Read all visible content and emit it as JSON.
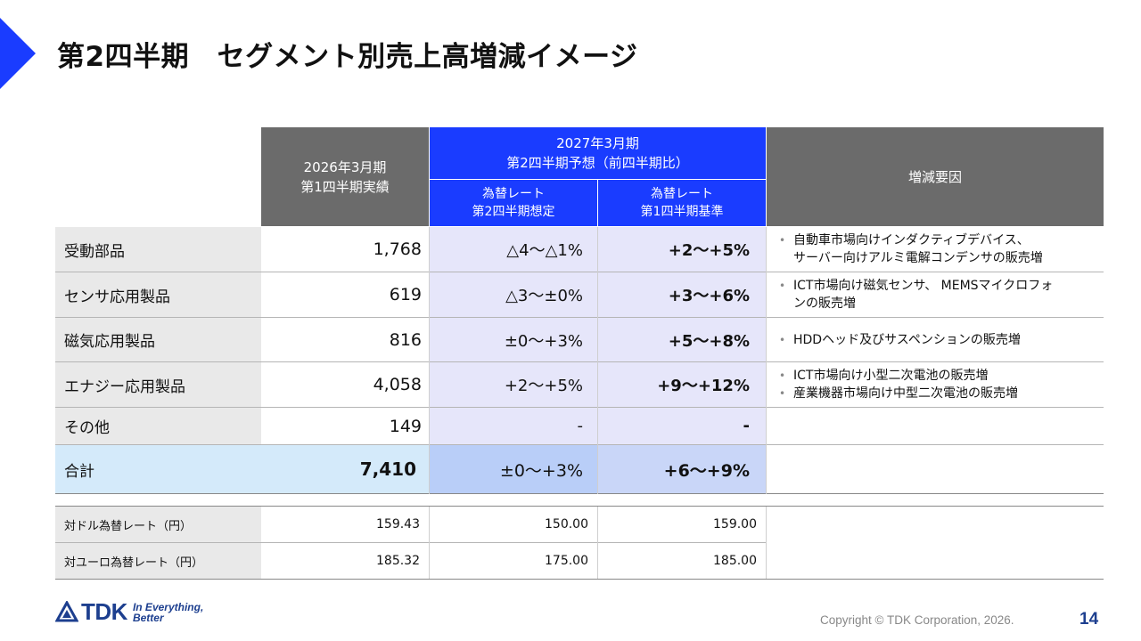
{
  "title": "第2四半期　セグメント別売上高増減イメージ",
  "header": {
    "fy2026_line1": "2026年3月期",
    "fy2026_line2": "第1四半期実績",
    "fy2027_line1": "2027年3月期",
    "fy2027_line2": "第2四半期予想（前四半期比）",
    "sub1_line1": "為替レート",
    "sub1_line2": "第2四半期想定",
    "sub2_line1": "為替レート",
    "sub2_line2": "第1四半期基準",
    "reasons": "増減要因"
  },
  "rows": [
    {
      "name": "受動部品",
      "actual": "1,768",
      "assumed": "△4～△1%",
      "base": "+2～+5%",
      "reasons": [
        "自動車市場向けインダクティブデバイス、",
        "サーバー向けアルミ電解コンデンサの販売増"
      ]
    },
    {
      "name": "センサ応用製品",
      "actual": "619",
      "assumed": "△3～±0%",
      "base": "+3～+6%",
      "reasons": [
        "ICT市場向け磁気センサ、 MEMSマイクロフォ",
        "ンの販売増"
      ]
    },
    {
      "name": "磁気応用製品",
      "actual": "816",
      "assumed": "±0～+3%",
      "base": "+5～+8%",
      "reasons": [
        "HDDヘッド及びサスペンションの販売増"
      ]
    },
    {
      "name": "エナジー応用製品",
      "actual": "4,058",
      "assumed": "+2～+5%",
      "base": "+9～+12%",
      "reasons": [
        "ICT市場向け小型二次電池の販売増",
        "産業機器市場向け中型二次電池の販売増"
      ]
    },
    {
      "name": "その他",
      "actual": "149",
      "assumed": "-",
      "base": "-",
      "reasons": []
    }
  ],
  "total": {
    "name": "合計",
    "actual": "7,410",
    "assumed": "±0～+3%",
    "base": "+6～+9%"
  },
  "fx": [
    {
      "name": "対ドル為替レート（円）",
      "actual": "159.43",
      "assumed": "150.00",
      "base": "159.00"
    },
    {
      "name": "対ユーロ為替レート（円）",
      "actual": "185.32",
      "assumed": "175.00",
      "base": "185.00"
    }
  ],
  "footer": {
    "logo_text": "TDK",
    "tagline1": "In Everything,",
    "tagline2": "Better",
    "copyright": "Copyright  © TDK Corporation, 2026.",
    "page": "14"
  },
  "colors": {
    "accent": "#1a3cff",
    "header_gray": "#6b6b6b",
    "brand": "#1d3f8f"
  }
}
